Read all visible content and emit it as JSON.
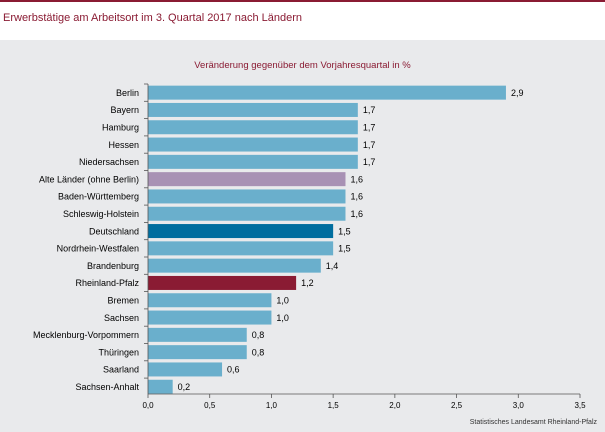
{
  "title": "Erwerbstätige am Arbeitsort im 3. Quartal 2017 nach Ländern",
  "source": "Statistisches Landesamt Rheinland-Pfalz",
  "chart_data": {
    "type": "bar",
    "orientation": "horizontal",
    "title": "Veränderung gegenüber dem Vorjahresquartal in %",
    "categories": [
      "Berlin",
      "Bayern",
      "Hamburg",
      "Hessen",
      "Niedersachsen",
      "Alte Länder (ohne Berlin)",
      "Baden-Württemberg",
      "Schleswig-Holstein",
      "Deutschland",
      "Nordrhein-Westfalen",
      "Brandenburg",
      "Rheinland-Pfalz",
      "Bremen",
      "Sachsen",
      "Mecklenburg-Vorpommern",
      "Thüringen",
      "Saarland",
      "Sachsen-Anhalt"
    ],
    "values": [
      2.9,
      1.7,
      1.7,
      1.7,
      1.7,
      1.6,
      1.6,
      1.6,
      1.5,
      1.5,
      1.4,
      1.2,
      1.0,
      1.0,
      0.8,
      0.8,
      0.6,
      0.2
    ],
    "value_labels": [
      "2,9",
      "1,7",
      "1,7",
      "1,7",
      "1,7",
      "1,6",
      "1,6",
      "1,6",
      "1,5",
      "1,5",
      "1,4",
      "1,2",
      "1,0",
      "1,0",
      "0,8",
      "0,8",
      "0,6",
      "0,2"
    ],
    "xlim": [
      0,
      3.5
    ],
    "x_ticks": [
      0,
      0.5,
      1,
      1.5,
      2,
      2.5,
      3,
      3.5
    ],
    "x_tick_labels": [
      "0,0",
      "0,5",
      "1,0",
      "1,5",
      "2,0",
      "2,5",
      "3,0",
      "3,5"
    ],
    "grid": false,
    "colors": {
      "default": "#6aafcc",
      "Alte Länder (ohne Berlin)": "#a891b4",
      "Deutschland": "#006e9f",
      "Rheinland-Pfalz": "#8a1b33"
    }
  }
}
